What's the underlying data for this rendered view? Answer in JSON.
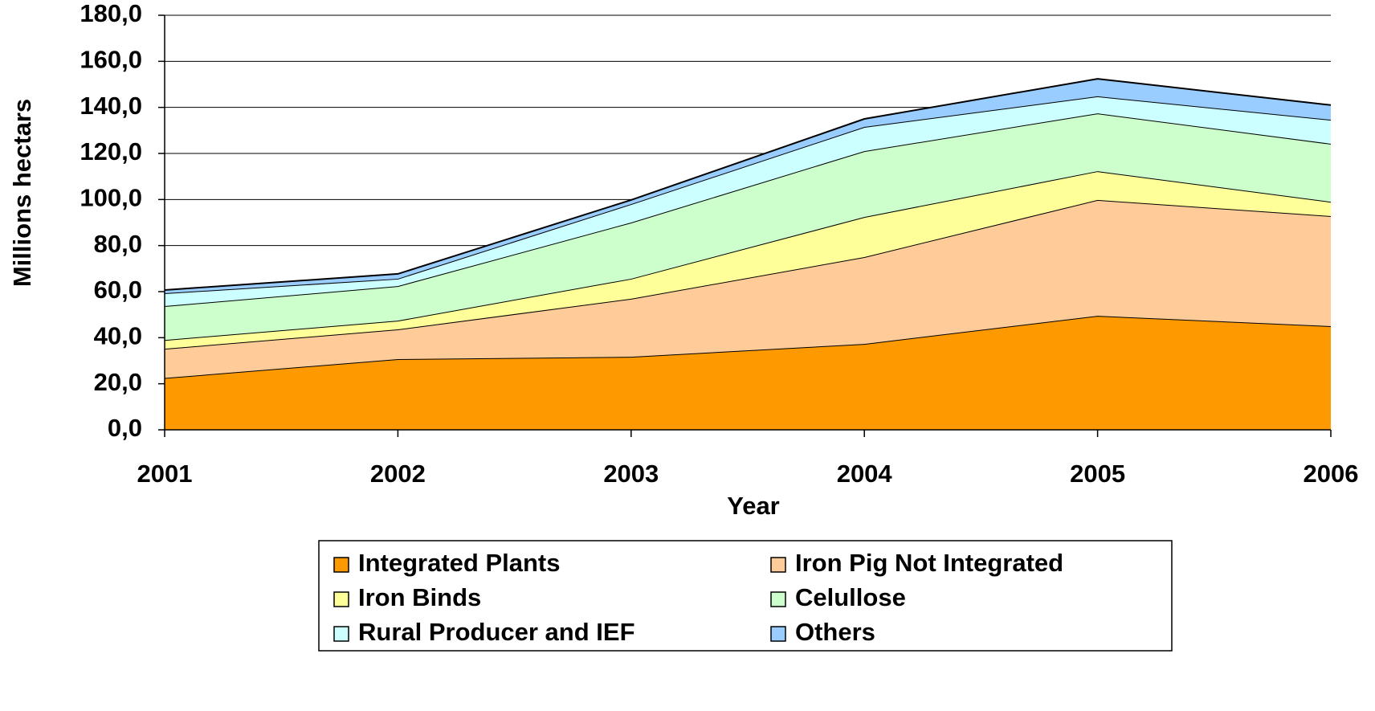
{
  "chart_data": {
    "type": "stacked-area",
    "x_label": "Year",
    "y_label": "Millions hectars",
    "categories": [
      "2001",
      "2002",
      "2003",
      "2004",
      "2005",
      "2006"
    ],
    "series": [
      {
        "name": "Integrated Plants",
        "color": "#ff9900",
        "values": [
          22.5,
          30.7,
          31.7,
          37.3,
          49.5,
          45.0
        ]
      },
      {
        "name": "Iron Pig Not Integrated",
        "color": "#ffcc99",
        "values": [
          12.7,
          12.9,
          25.2,
          37.7,
          50.3,
          47.8
        ]
      },
      {
        "name": "Iron Binds",
        "color": "#ffff99",
        "values": [
          3.8,
          3.8,
          8.7,
          17.4,
          12.5,
          6.2
        ]
      },
      {
        "name": "Celullose",
        "color": "#ccffcc",
        "values": [
          14.7,
          15.0,
          24.4,
          28.6,
          25.1,
          25.2
        ]
      },
      {
        "name": "Rural Producer and IEF",
        "color": "#ccffff",
        "values": [
          5.6,
          3.2,
          8.0,
          10.5,
          7.4,
          10.4
        ]
      },
      {
        "name": "Others",
        "color": "#99ccff",
        "values": [
          1.4,
          2.1,
          1.8,
          3.5,
          7.6,
          6.4
        ]
      }
    ],
    "ylim": [
      0,
      180
    ],
    "yticks": [
      {
        "value": 0,
        "label": "0,0"
      },
      {
        "value": 20,
        "label": "20,0"
      },
      {
        "value": 40,
        "label": "40,0"
      },
      {
        "value": 60,
        "label": "60,0"
      },
      {
        "value": 80,
        "label": "80,0"
      },
      {
        "value": 100,
        "label": "100,0"
      },
      {
        "value": 120,
        "label": "120,0"
      },
      {
        "value": 140,
        "label": "140,0"
      },
      {
        "value": 160,
        "label": "160,0"
      },
      {
        "value": 180,
        "label": "180,0"
      }
    ],
    "grid": true,
    "legend": "bottom"
  }
}
